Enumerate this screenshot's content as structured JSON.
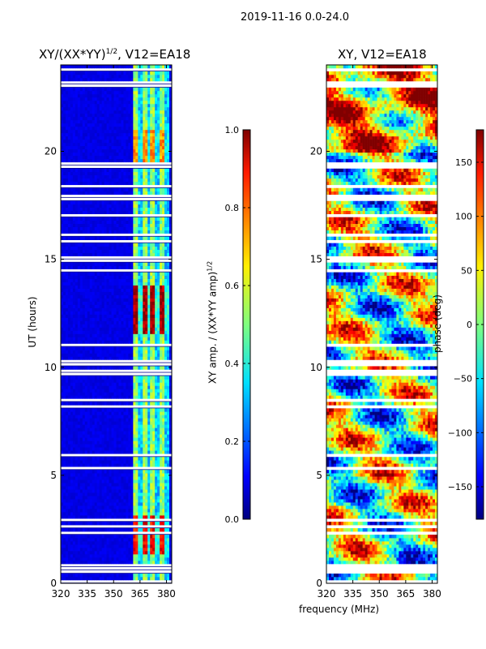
{
  "figure": {
    "title": "2019-11-16 0.0-24.0",
    "shared_xlabel": "frequency (MHz)"
  },
  "chart_data": [
    {
      "type": "heatmap",
      "title": "XY/(XX*YY)",
      "title_exponent": "1/2",
      "title_suffix": ", V12=EA18",
      "xlabel": "",
      "ylabel": "UT (hours)",
      "xlim": [
        320,
        383
      ],
      "ylim": [
        0,
        24
      ],
      "xticks": [
        "320",
        "335",
        "350",
        "365",
        "380"
      ],
      "yticks": [
        "0",
        "5",
        "10",
        "15",
        "20"
      ],
      "colorbar": {
        "label": "XY amp. / (XX*YY amp)",
        "label_exponent": "1/2",
        "range": [
          0.0,
          1.0
        ],
        "ticks": [
          "0.0",
          "0.2",
          "0.4",
          "0.6",
          "0.8",
          "1.0"
        ],
        "colormap": "jet"
      },
      "description": "Mostly low amplitude (~0.1) below 360 MHz; bright channel stripes between 360 and 380 MHz; strongest (~0.8-1.0) near 12-13 h and 1.5-3 h."
    },
    {
      "type": "heatmap",
      "title": "XY, V12=EA18",
      "xlabel": "frequency (MHz)",
      "ylabel": "",
      "xlim": [
        320,
        383
      ],
      "ylim": [
        0,
        24
      ],
      "xticks": [
        "320",
        "335",
        "350",
        "365",
        "380"
      ],
      "yticks": [
        "0",
        "5",
        "10",
        "15",
        "20"
      ],
      "colorbar": {
        "label": "phase (deg)",
        "range": [
          -180,
          180
        ],
        "ticks": [
          "-150",
          "-100",
          "-50",
          "0",
          "50",
          "100",
          "150"
        ],
        "colormap": "jet"
      },
      "description": "Phase varying smoothly with time and frequency; warm (positive) phases dominate 20-24 h, mixed structure elsewhere."
    }
  ]
}
